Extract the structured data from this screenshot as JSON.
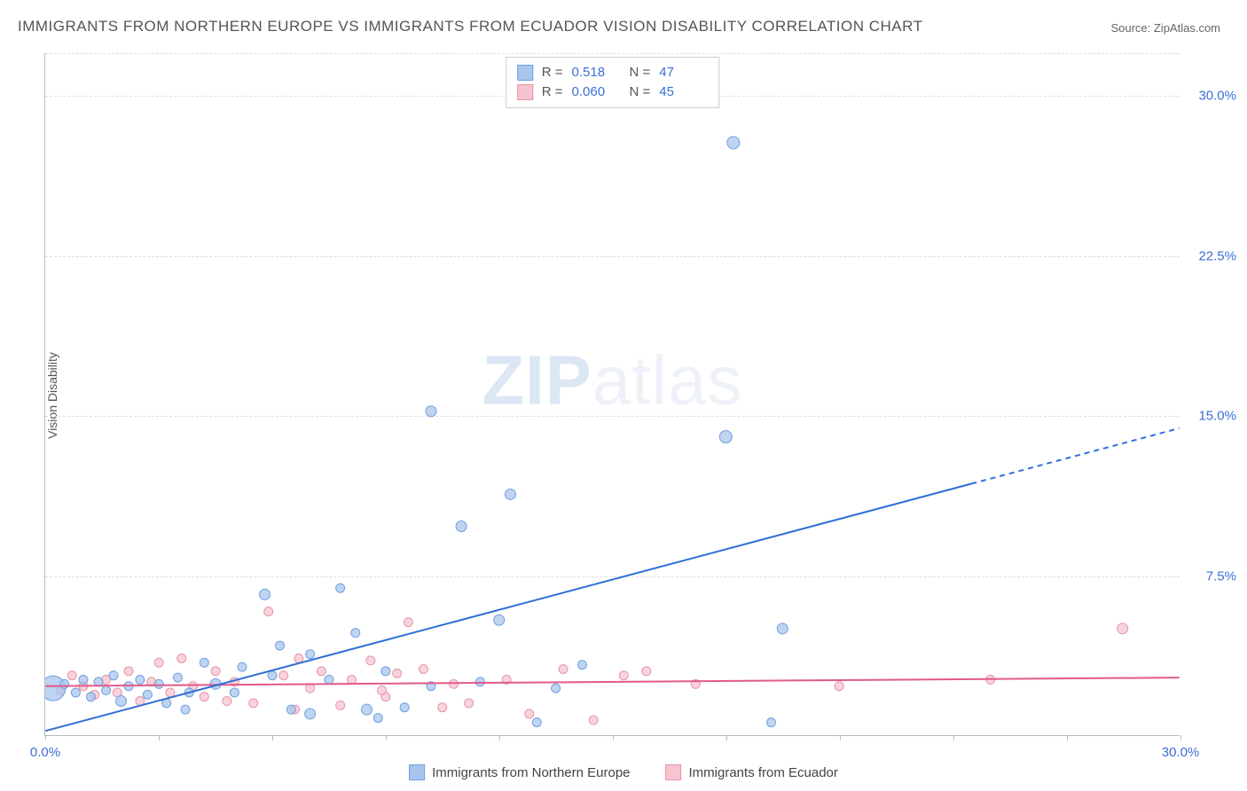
{
  "title": "IMMIGRANTS FROM NORTHERN EUROPE VS IMMIGRANTS FROM ECUADOR VISION DISABILITY CORRELATION CHART",
  "source": "Source: ZipAtlas.com",
  "y_axis_label": "Vision Disability",
  "watermark_bold": "ZIP",
  "watermark_rest": "atlas",
  "chart": {
    "type": "scatter",
    "background_color": "#ffffff",
    "grid_color": "#dddddd",
    "axis_color": "#bbbbbb",
    "tick_label_color": "#3b6fd6",
    "tick_label_fontsize": 15,
    "xlim": [
      0,
      30
    ],
    "ylim": [
      0,
      32
    ],
    "x_ticks": [
      0,
      3,
      6,
      9,
      12,
      15,
      18,
      21,
      24,
      27,
      30
    ],
    "x_tick_labels": {
      "0": "0.0%",
      "30": "30.0%"
    },
    "y_ticks": [
      7.5,
      15.0,
      22.5,
      30.0
    ],
    "y_tick_labels": [
      "7.5%",
      "15.0%",
      "22.5%",
      "30.0%"
    ],
    "series": [
      {
        "name": "Immigrants from Northern Europe",
        "color_fill": "#a9c5ed",
        "color_stroke": "#6f9fde",
        "marker_radius_range": [
          4,
          14
        ],
        "r_value": "0.518",
        "n_value": "47",
        "trend": {
          "x1": 0,
          "y1": 0.2,
          "x2": 30,
          "y2": 14.4,
          "solid_until_x": 24.5,
          "color": "#2e6fd6",
          "width": 2
        },
        "points": [
          {
            "x": 0.2,
            "y": 2.2,
            "r": 14
          },
          {
            "x": 0.5,
            "y": 2.4,
            "r": 5
          },
          {
            "x": 0.8,
            "y": 2.0,
            "r": 5
          },
          {
            "x": 1.0,
            "y": 2.6,
            "r": 5
          },
          {
            "x": 1.2,
            "y": 1.8,
            "r": 5
          },
          {
            "x": 1.4,
            "y": 2.5,
            "r": 5
          },
          {
            "x": 1.6,
            "y": 2.1,
            "r": 5
          },
          {
            "x": 1.8,
            "y": 2.8,
            "r": 5
          },
          {
            "x": 2.0,
            "y": 1.6,
            "r": 6
          },
          {
            "x": 2.2,
            "y": 2.3,
            "r": 5
          },
          {
            "x": 2.5,
            "y": 2.6,
            "r": 5
          },
          {
            "x": 2.7,
            "y": 1.9,
            "r": 5
          },
          {
            "x": 3.0,
            "y": 2.4,
            "r": 5
          },
          {
            "x": 3.2,
            "y": 1.5,
            "r": 5
          },
          {
            "x": 3.5,
            "y": 2.7,
            "r": 5
          },
          {
            "x": 3.8,
            "y": 2.0,
            "r": 5
          },
          {
            "x": 4.5,
            "y": 2.4,
            "r": 6
          },
          {
            "x": 5.0,
            "y": 2.0,
            "r": 5
          },
          {
            "x": 5.2,
            "y": 3.2,
            "r": 5
          },
          {
            "x": 5.8,
            "y": 6.6,
            "r": 6
          },
          {
            "x": 6.2,
            "y": 4.2,
            "r": 5
          },
          {
            "x": 6.5,
            "y": 1.2,
            "r": 5
          },
          {
            "x": 7.0,
            "y": 3.8,
            "r": 5
          },
          {
            "x": 7.0,
            "y": 1.0,
            "r": 6
          },
          {
            "x": 7.5,
            "y": 2.6,
            "r": 5
          },
          {
            "x": 7.8,
            "y": 6.9,
            "r": 5
          },
          {
            "x": 8.2,
            "y": 4.8,
            "r": 5
          },
          {
            "x": 8.5,
            "y": 1.2,
            "r": 6
          },
          {
            "x": 8.8,
            "y": 0.8,
            "r": 5
          },
          {
            "x": 9.0,
            "y": 3.0,
            "r": 5
          },
          {
            "x": 9.5,
            "y": 1.3,
            "r": 5
          },
          {
            "x": 10.2,
            "y": 2.3,
            "r": 5
          },
          {
            "x": 10.2,
            "y": 15.2,
            "r": 6
          },
          {
            "x": 11.0,
            "y": 9.8,
            "r": 6
          },
          {
            "x": 12.0,
            "y": 5.4,
            "r": 6
          },
          {
            "x": 12.3,
            "y": 11.3,
            "r": 6
          },
          {
            "x": 13.5,
            "y": 2.2,
            "r": 5
          },
          {
            "x": 14.2,
            "y": 3.3,
            "r": 5
          },
          {
            "x": 13.0,
            "y": 0.6,
            "r": 5
          },
          {
            "x": 18.0,
            "y": 14.0,
            "r": 7
          },
          {
            "x": 18.2,
            "y": 27.8,
            "r": 7
          },
          {
            "x": 19.5,
            "y": 5.0,
            "r": 6
          },
          {
            "x": 19.2,
            "y": 0.6,
            "r": 5
          },
          {
            "x": 3.7,
            "y": 1.2,
            "r": 5
          },
          {
            "x": 4.2,
            "y": 3.4,
            "r": 5
          },
          {
            "x": 6.0,
            "y": 2.8,
            "r": 5
          },
          {
            "x": 11.5,
            "y": 2.5,
            "r": 5
          }
        ]
      },
      {
        "name": "Immigrants from Ecuador",
        "color_fill": "#f6c4cf",
        "color_stroke": "#e795a7",
        "marker_radius_range": [
          4,
          8
        ],
        "r_value": "0.060",
        "n_value": "45",
        "trend": {
          "x1": 0,
          "y1": 2.3,
          "x2": 30,
          "y2": 2.7,
          "solid_until_x": 30,
          "color": "#e05a8a",
          "width": 2
        },
        "points": [
          {
            "x": 0.4,
            "y": 2.1,
            "r": 5
          },
          {
            "x": 0.7,
            "y": 2.8,
            "r": 5
          },
          {
            "x": 1.0,
            "y": 2.3,
            "r": 5
          },
          {
            "x": 1.3,
            "y": 1.9,
            "r": 5
          },
          {
            "x": 1.6,
            "y": 2.6,
            "r": 5
          },
          {
            "x": 1.9,
            "y": 2.0,
            "r": 5
          },
          {
            "x": 2.2,
            "y": 3.0,
            "r": 5
          },
          {
            "x": 2.5,
            "y": 1.6,
            "r": 5
          },
          {
            "x": 2.8,
            "y": 2.5,
            "r": 5
          },
          {
            "x": 3.0,
            "y": 3.4,
            "r": 5
          },
          {
            "x": 3.3,
            "y": 2.0,
            "r": 5
          },
          {
            "x": 3.6,
            "y": 3.6,
            "r": 5
          },
          {
            "x": 3.9,
            "y": 2.3,
            "r": 5
          },
          {
            "x": 4.2,
            "y": 1.8,
            "r": 5
          },
          {
            "x": 4.5,
            "y": 3.0,
            "r": 5
          },
          {
            "x": 5.0,
            "y": 2.5,
            "r": 5
          },
          {
            "x": 5.5,
            "y": 1.5,
            "r": 5
          },
          {
            "x": 5.9,
            "y": 5.8,
            "r": 5
          },
          {
            "x": 6.3,
            "y": 2.8,
            "r": 5
          },
          {
            "x": 6.6,
            "y": 1.2,
            "r": 5
          },
          {
            "x": 6.7,
            "y": 3.6,
            "r": 5
          },
          {
            "x": 7.0,
            "y": 2.2,
            "r": 5
          },
          {
            "x": 7.3,
            "y": 3.0,
            "r": 5
          },
          {
            "x": 7.8,
            "y": 1.4,
            "r": 5
          },
          {
            "x": 8.1,
            "y": 2.6,
            "r": 5
          },
          {
            "x": 8.6,
            "y": 3.5,
            "r": 5
          },
          {
            "x": 9.0,
            "y": 1.8,
            "r": 5
          },
          {
            "x": 9.3,
            "y": 2.9,
            "r": 5
          },
          {
            "x": 9.6,
            "y": 5.3,
            "r": 5
          },
          {
            "x": 10.0,
            "y": 3.1,
            "r": 5
          },
          {
            "x": 10.5,
            "y": 1.3,
            "r": 5
          },
          {
            "x": 10.8,
            "y": 2.4,
            "r": 5
          },
          {
            "x": 11.2,
            "y": 1.5,
            "r": 5
          },
          {
            "x": 12.2,
            "y": 2.6,
            "r": 5
          },
          {
            "x": 12.8,
            "y": 1.0,
            "r": 5
          },
          {
            "x": 13.7,
            "y": 3.1,
            "r": 5
          },
          {
            "x": 14.5,
            "y": 0.7,
            "r": 5
          },
          {
            "x": 15.3,
            "y": 2.8,
            "r": 5
          },
          {
            "x": 15.9,
            "y": 3.0,
            "r": 5
          },
          {
            "x": 17.2,
            "y": 2.4,
            "r": 5
          },
          {
            "x": 21.0,
            "y": 2.3,
            "r": 5
          },
          {
            "x": 25.0,
            "y": 2.6,
            "r": 5
          },
          {
            "x": 28.5,
            "y": 5.0,
            "r": 6
          },
          {
            "x": 4.8,
            "y": 1.6,
            "r": 5
          },
          {
            "x": 8.9,
            "y": 2.1,
            "r": 5
          }
        ]
      }
    ]
  },
  "legend_top": {
    "r_label": "R =",
    "n_label": "N ="
  }
}
